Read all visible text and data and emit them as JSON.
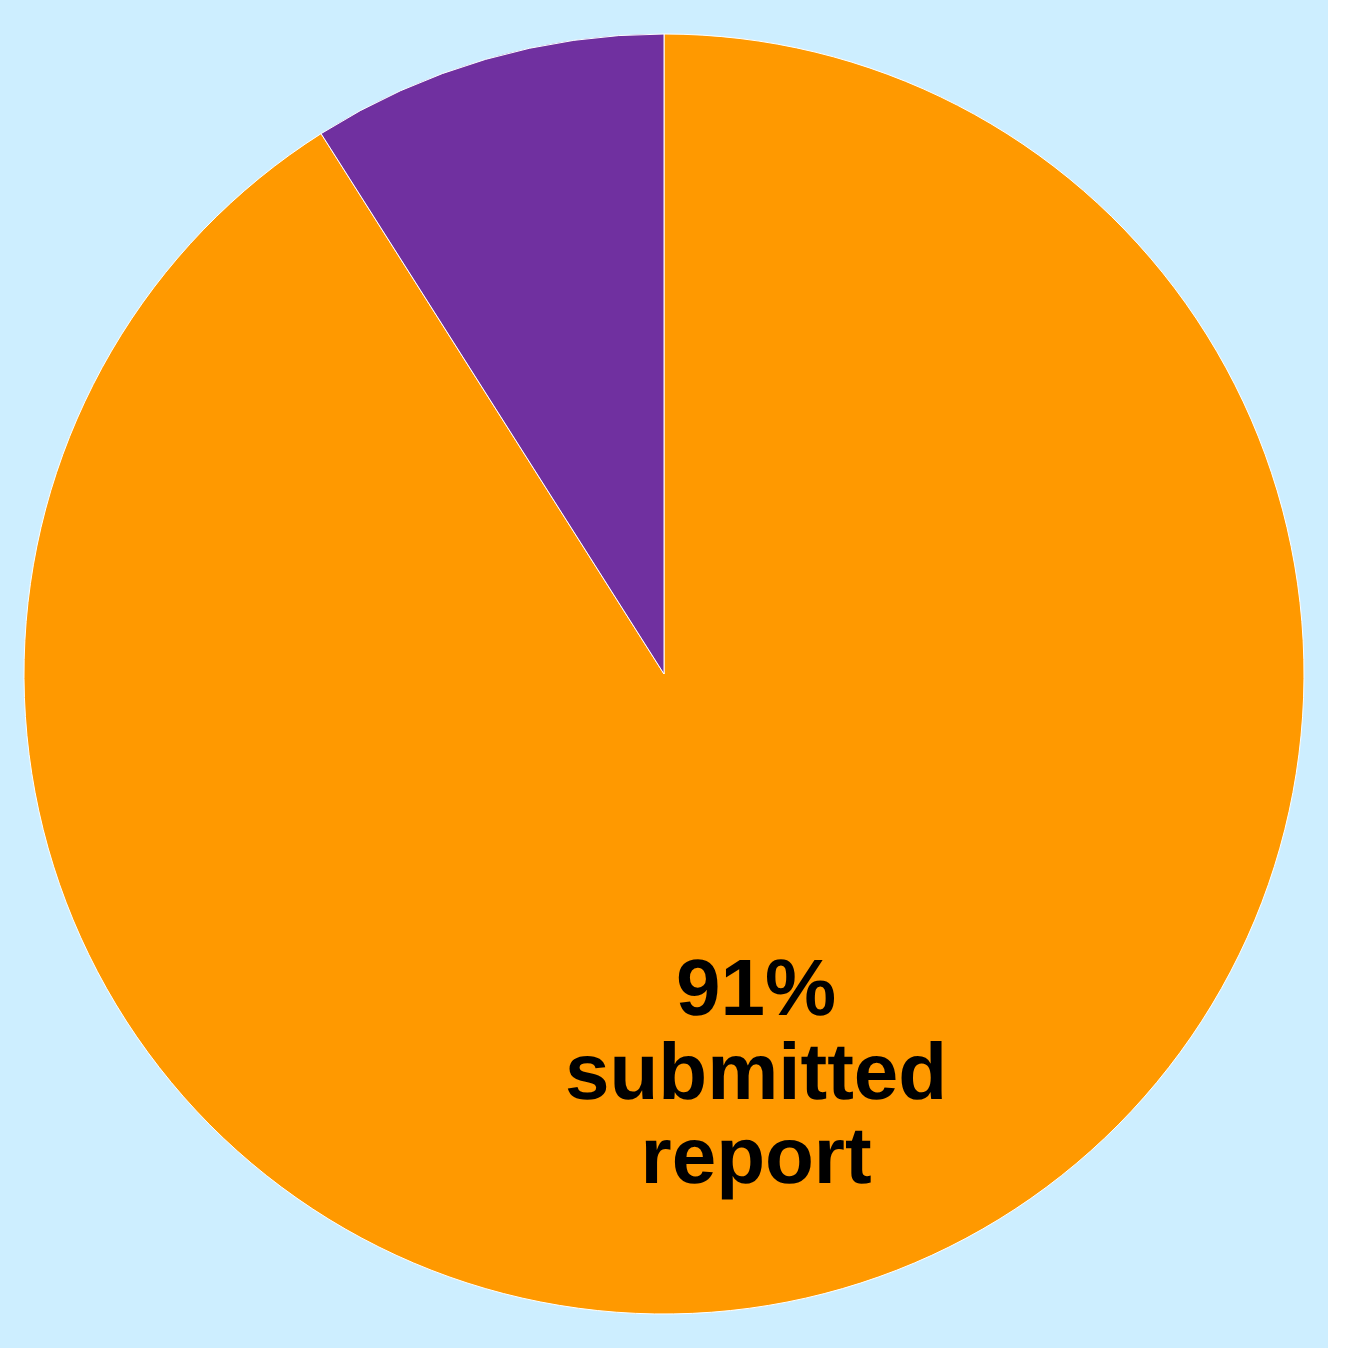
{
  "chart_data": {
    "type": "pie",
    "categories": [
      "submitted report",
      null
    ],
    "values": [
      91,
      9
    ],
    "colors": [
      "#ff9900",
      "#7030a0"
    ],
    "value_labels": [
      "91%",
      null
    ],
    "legend": false
  }
}
